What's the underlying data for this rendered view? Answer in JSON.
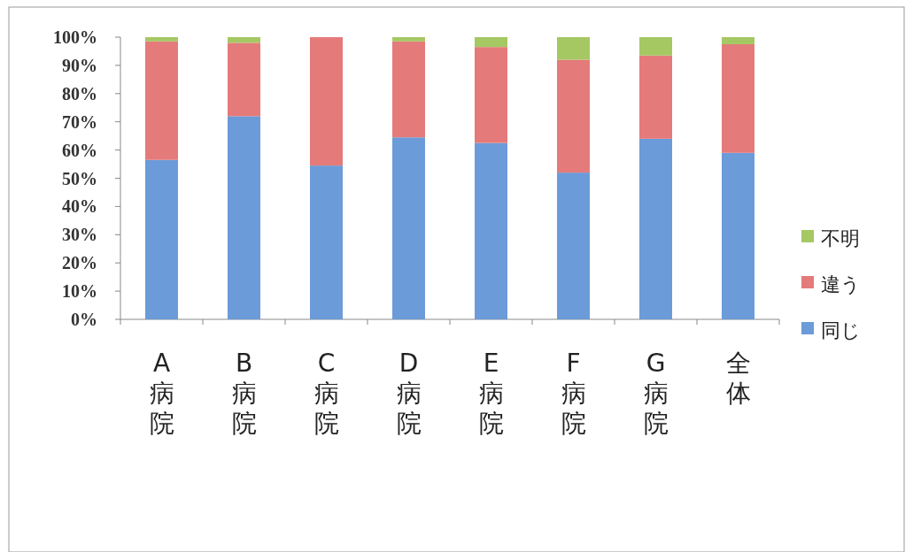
{
  "chart_data": {
    "type": "bar",
    "stacked": true,
    "categories": [
      "A病院",
      "B病院",
      "C病院",
      "D病院",
      "E病院",
      "F病院",
      "G病院",
      "全体"
    ],
    "series": [
      {
        "name": "同じ",
        "color": "#6b9bd8",
        "values": [
          56.5,
          72,
          54.5,
          64.5,
          62.5,
          52,
          64,
          59
        ]
      },
      {
        "name": "違う",
        "color": "#e57a7a",
        "values": [
          42,
          26,
          45.5,
          34,
          34,
          40,
          29.5,
          38.5
        ]
      },
      {
        "name": "不明",
        "color": "#a5c863",
        "values": [
          1.5,
          2,
          0,
          1.5,
          3.5,
          8,
          6.5,
          2.5
        ]
      }
    ],
    "ylim": [
      0,
      100
    ],
    "yticks": [
      {
        "value": 0,
        "label": "0%"
      },
      {
        "value": 10,
        "label": "10%"
      },
      {
        "value": 20,
        "label": "20%"
      },
      {
        "value": 30,
        "label": "30%"
      },
      {
        "value": 40,
        "label": "40%"
      },
      {
        "value": 50,
        "label": "50%"
      },
      {
        "value": 60,
        "label": "60%"
      },
      {
        "value": 70,
        "label": "70%"
      },
      {
        "value": 80,
        "label": "80%"
      },
      {
        "value": 90,
        "label": "90%"
      },
      {
        "value": 100,
        "label": "100%"
      }
    ],
    "legend": "right",
    "grid": false
  }
}
